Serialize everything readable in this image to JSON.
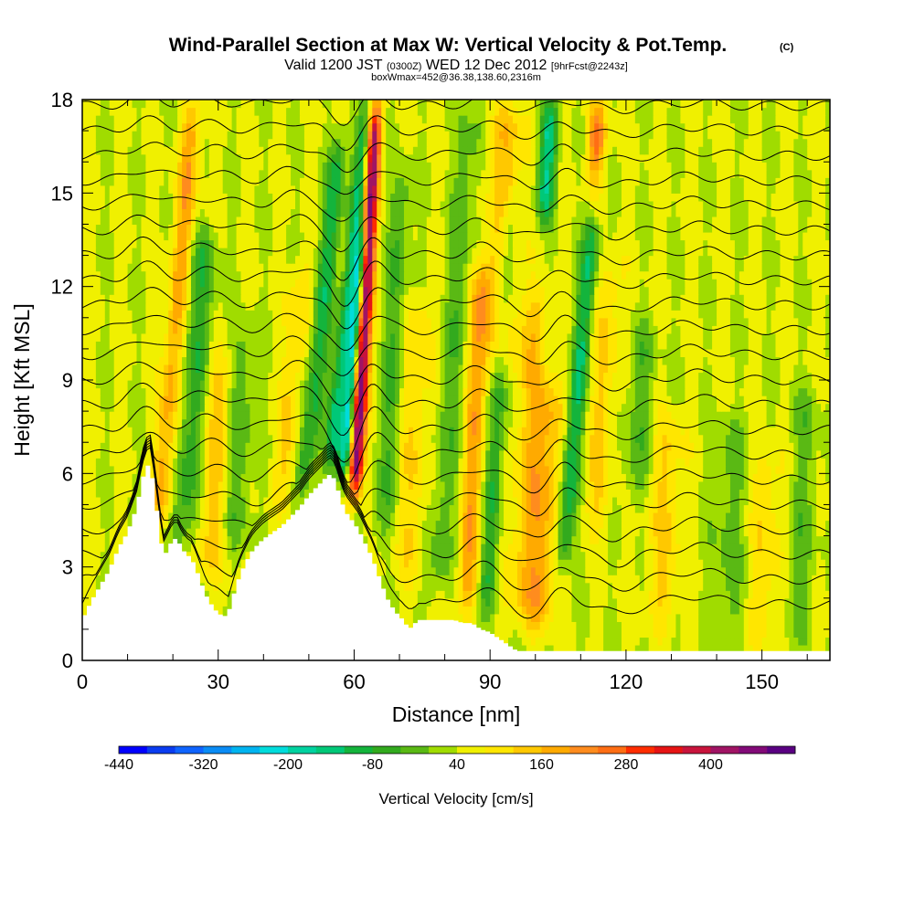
{
  "title": "Wind-Parallel Section at Max W: Vertical Velocity & Pot.Temp.",
  "title_mark": "(C)",
  "subtitle_main_a": "Valid 1200 JST",
  "subtitle_small_a": "(0300Z)",
  "subtitle_main_b": "WED 12 Dec 2012",
  "subtitle_small_b": "[9hrFcst@2243z]",
  "subtitle2": "boxWmax=452@36.38,138.60,2316m",
  "chart_data": {
    "type": "heatmap",
    "xlabel": "Distance [nm]",
    "ylabel": "Height [Kft MSL]",
    "xlim": [
      0,
      165
    ],
    "ylim": [
      0,
      18
    ],
    "x_ticks": [
      "0",
      "30",
      "60",
      "90",
      "120",
      "150"
    ],
    "y_ticks": [
      "0",
      "3",
      "6",
      "9",
      "12",
      "15",
      "18"
    ],
    "colorbar": {
      "label": "Vertical Velocity [cm/s]",
      "tick_labels": [
        "-440",
        "-320",
        "-200",
        "-80",
        "40",
        "160",
        "280",
        "400"
      ],
      "levels": [
        -440,
        -400,
        -360,
        -320,
        -280,
        -240,
        -200,
        -160,
        -120,
        -80,
        -40,
        0,
        40,
        80,
        120,
        160,
        200,
        240,
        280,
        320,
        360,
        400,
        440,
        480
      ],
      "colors": [
        "#0000ff",
        "#0a3cf0",
        "#0f64ff",
        "#0a8cf5",
        "#00b4f0",
        "#00dcdc",
        "#00d2a0",
        "#00c878",
        "#14b43c",
        "#32aa1e",
        "#5ab914",
        "#a0dc00",
        "#f0f000",
        "#ffe600",
        "#ffc800",
        "#ffaa00",
        "#ff8c1e",
        "#ff6e14",
        "#ff2d00",
        "#e61414",
        "#c8143c",
        "#a01464",
        "#820a78",
        "#5a0082"
      ]
    },
    "terrain_kft": {
      "x": [
        0,
        2,
        4,
        6,
        8,
        10,
        12,
        13,
        14,
        15,
        16,
        17,
        18,
        19,
        20,
        21,
        22,
        23,
        24,
        25,
        26,
        27,
        28,
        30,
        32,
        33,
        34,
        35,
        36,
        37,
        38,
        40,
        42,
        44,
        46,
        48,
        50,
        52,
        54,
        55,
        56,
        57,
        58,
        59,
        60,
        61,
        62,
        63,
        64,
        65,
        66,
        67,
        68,
        69,
        70,
        71,
        72,
        73,
        74,
        75,
        76,
        78,
        80,
        82,
        84,
        86,
        88,
        90,
        92,
        94,
        96,
        98,
        100,
        165
      ],
      "y": [
        1.3,
        1.9,
        2.4,
        2.9,
        3.6,
        4.1,
        4.9,
        5.6,
        6.2,
        6.3,
        5.4,
        4.2,
        3.3,
        3.6,
        3.9,
        3.9,
        3.6,
        3.4,
        3.3,
        3.0,
        2.6,
        2.2,
        1.9,
        1.5,
        1.4,
        1.9,
        2.4,
        2.8,
        3.1,
        3.4,
        3.6,
        3.9,
        4.1,
        4.3,
        4.6,
        4.9,
        5.3,
        5.6,
        5.9,
        6.0,
        5.7,
        5.2,
        4.8,
        4.6,
        4.4,
        4.2,
        3.9,
        3.6,
        3.3,
        2.9,
        2.5,
        2.1,
        1.8,
        1.6,
        1.4,
        1.3,
        1.0,
        1.1,
        1.3,
        1.3,
        1.3,
        1.3,
        1.3,
        1.3,
        1.2,
        1.2,
        1.0,
        0.9,
        0.7,
        0.5,
        0.3,
        0.3,
        0.3,
        0.3
      ]
    },
    "w_features": [
      {
        "x": 17,
        "z0": 4.2,
        "z1": 18,
        "lean": 0.55,
        "amp": 140,
        "width": 2.2
      },
      {
        "x": 22,
        "z0": 3.5,
        "z1": 14,
        "lean": 0.5,
        "amp": -110,
        "width": 3.0
      },
      {
        "x": 28,
        "z0": 2.5,
        "z1": 10,
        "lean": 0.3,
        "amp": 90,
        "width": 3.0
      },
      {
        "x": 34,
        "z0": 3.5,
        "z1": 11,
        "lean": 0.3,
        "amp": -70,
        "width": 3.0
      },
      {
        "x": 44,
        "z0": 5.0,
        "z1": 13,
        "lean": 0.6,
        "amp": 80,
        "width": 2.5
      },
      {
        "x": 49,
        "z0": 5.5,
        "z1": 17,
        "lean": 0.7,
        "amp": -140,
        "width": 2.2
      },
      {
        "x": 55,
        "z0": 6.0,
        "z1": 18,
        "lean": 0.7,
        "amp": -190,
        "width": 2.0
      },
      {
        "x": 60.2,
        "z0": 5.2,
        "z1": 18,
        "lean": 0.35,
        "amp": 440,
        "width": 1.6
      },
      {
        "x": 57.5,
        "z0": 5.5,
        "z1": 14,
        "lean": 0.55,
        "amp": -240,
        "width": 1.3
      },
      {
        "x": 66,
        "z0": 3.5,
        "z1": 16,
        "lean": 0.4,
        "amp": -80,
        "width": 2.5
      },
      {
        "x": 72,
        "z0": 2.5,
        "z1": 12,
        "lean": 0.3,
        "amp": 70,
        "width": 3.5
      },
      {
        "x": 78,
        "z0": 2.0,
        "z1": 18,
        "lean": 0.5,
        "amp": -70,
        "width": 3.0
      },
      {
        "x": 85,
        "z0": 1.5,
        "z1": 13,
        "lean": 0.3,
        "amp": 140,
        "width": 2.5
      },
      {
        "x": 89,
        "z0": 1.5,
        "z1": 15,
        "lean": 0.4,
        "amp": -120,
        "width": 2.2
      },
      {
        "x": 92,
        "z0": 9.0,
        "z1": 18,
        "lean": 0.2,
        "amp": 110,
        "width": 4.0
      },
      {
        "x": 97,
        "z0": 1.0,
        "z1": 12,
        "lean": 0.3,
        "amp": 100,
        "width": 3.5
      },
      {
        "x": 101,
        "z0": 0.8,
        "z1": 9,
        "lean": 0.3,
        "amp": 110,
        "width": 3.0
      },
      {
        "x": 106,
        "z0": 3.0,
        "z1": 16,
        "lean": 0.6,
        "amp": -160,
        "width": 2.0
      },
      {
        "x": 102,
        "z0": 14,
        "z1": 18,
        "lean": 0.3,
        "amp": -200,
        "width": 2.0
      },
      {
        "x": 113,
        "z0": 14,
        "z1": 18,
        "lean": 0.2,
        "amp": 200,
        "width": 2.0
      },
      {
        "x": 113,
        "z0": 4.0,
        "z1": 13,
        "lean": 0.4,
        "amp": 80,
        "width": 3.0
      },
      {
        "x": 122,
        "z0": 5.0,
        "z1": 11,
        "lean": 0.3,
        "amp": -70,
        "width": 3.0
      },
      {
        "x": 128,
        "z0": 1.0,
        "z1": 8,
        "lean": 0.2,
        "amp": 80,
        "width": 3.5
      },
      {
        "x": 142,
        "z0": 0.5,
        "z1": 8,
        "lean": 0.2,
        "amp": -60,
        "width": 4.0
      },
      {
        "x": 150,
        "z0": 0.5,
        "z1": 7,
        "lean": 0.2,
        "amp": 70,
        "width": 3.5
      },
      {
        "x": 158,
        "z0": 0.5,
        "z1": 9,
        "lean": 0.2,
        "amp": -60,
        "width": 3.0
      }
    ],
    "theta_contour_levels_kft": [
      1.8,
      2.6,
      3.4,
      4.2,
      5.0,
      5.8,
      6.6,
      7.4,
      8.2,
      9.0,
      9.8,
      10.6,
      11.4,
      12.2,
      13.0,
      13.8,
      14.6,
      15.4,
      16.2,
      17.0,
      17.8
    ],
    "wave_features": [
      {
        "x": 14,
        "amp": 0.8,
        "width": 5
      },
      {
        "x": 28,
        "amp": 0.5,
        "width": 6
      },
      {
        "x": 47,
        "amp": 0.7,
        "width": 6
      },
      {
        "x": 58,
        "amp": -1.3,
        "width": 4
      },
      {
        "x": 64,
        "amp": 0.9,
        "width": 4
      },
      {
        "x": 88,
        "amp": 0.5,
        "width": 5
      },
      {
        "x": 100,
        "amp": -0.4,
        "width": 5
      },
      {
        "x": 106,
        "amp": 0.6,
        "width": 4
      },
      {
        "x": 118,
        "amp": -0.3,
        "width": 5
      },
      {
        "x": 135,
        "amp": 0.3,
        "width": 7
      }
    ]
  }
}
